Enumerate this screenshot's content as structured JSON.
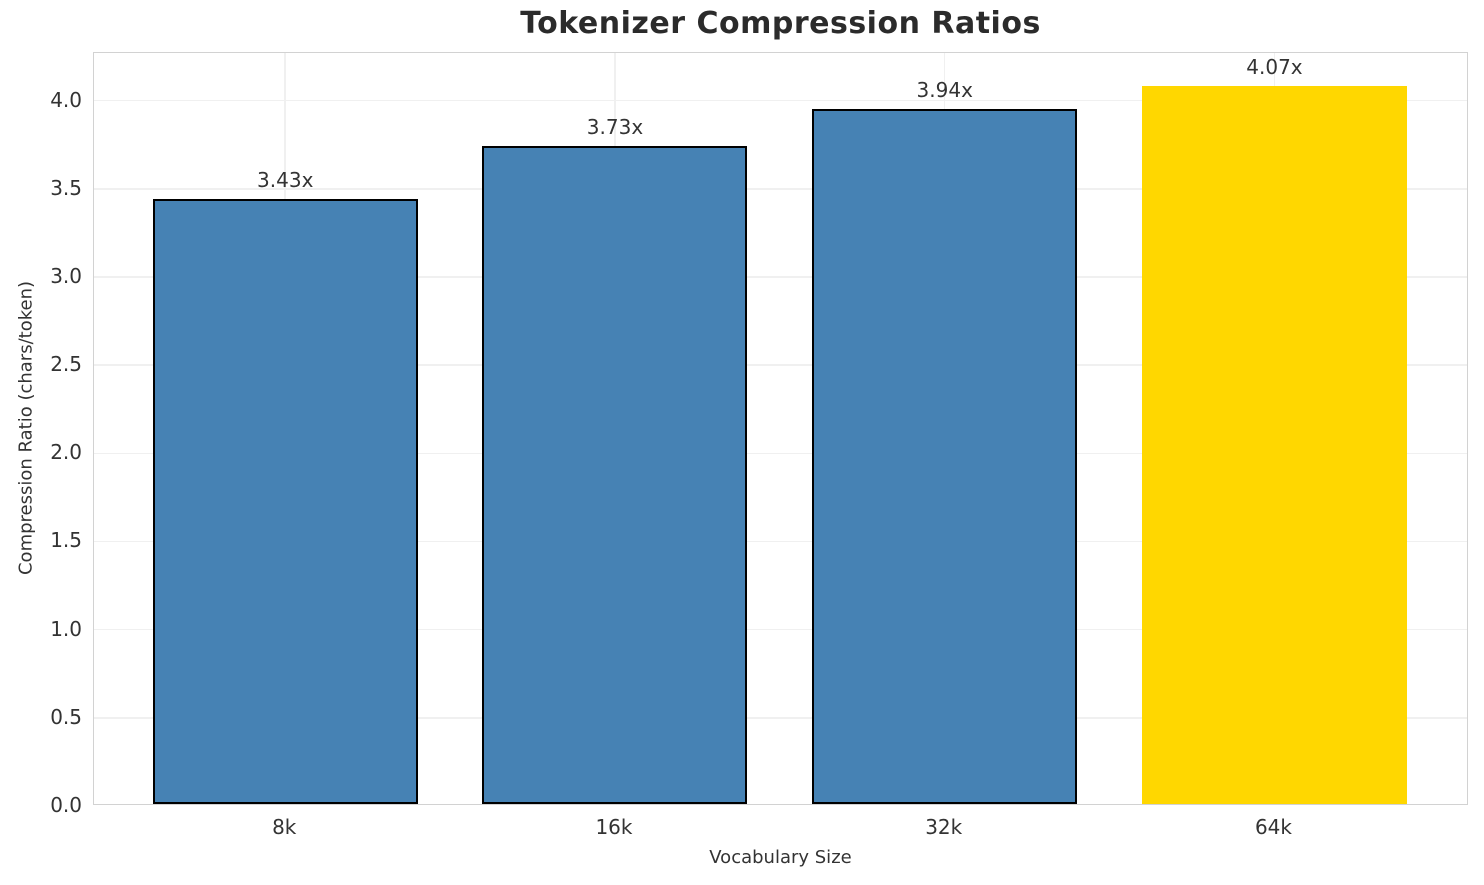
{
  "chart_data": {
    "type": "bar",
    "title": "Tokenizer Compression Ratios",
    "xlabel": "Vocabulary Size",
    "ylabel": "Compression Ratio (chars/token)",
    "categories": [
      "8k",
      "16k",
      "32k",
      "64k"
    ],
    "values": [
      3.43,
      3.73,
      3.94,
      4.07
    ],
    "bar_labels": [
      "3.43x",
      "3.73x",
      "3.94x",
      "4.07x"
    ],
    "bar_fill_colors": [
      "#4682B4",
      "#4682B4",
      "#4682B4",
      "#FFD700"
    ],
    "bar_edge_colors": [
      "#000000",
      "#000000",
      "#000000",
      "#FFD700"
    ],
    "highlighted_category": "64k",
    "ylim": [
      0,
      4.27
    ],
    "ytick_labels": [
      "0.0",
      "0.5",
      "1.0",
      "1.5",
      "2.0",
      "2.5",
      "3.0",
      "3.5",
      "4.0"
    ],
    "grid": true,
    "grid_axes": "both",
    "legend": false,
    "colors": {
      "bar_blue": "#4682B4",
      "bar_gold": "#FFD700",
      "bar_edge": "#000000",
      "grid": "#f0f0f0",
      "spine": "#d2d2d2",
      "text": "#333333",
      "title_text": "#2b2b2b",
      "background": "#ffffff"
    }
  }
}
